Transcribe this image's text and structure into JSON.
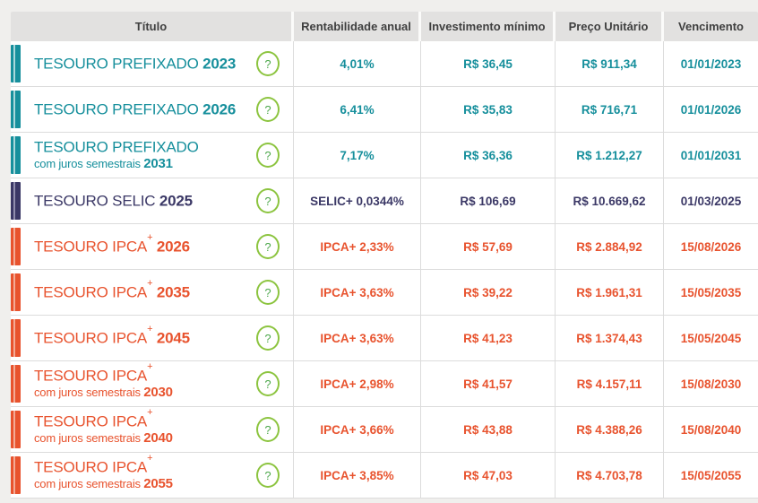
{
  "colors": {
    "page_bg": "#f0efed",
    "header_bg": "#e2e1e0",
    "header_text": "#3f3f3f",
    "border": "#dcdcdc",
    "teal": "#168f9c",
    "navy": "#3b3866",
    "orange": "#e8532e",
    "help_border": "#8cc43f",
    "help_color": "#4ca74b"
  },
  "table": {
    "help_icon_label": "?",
    "columns": [
      {
        "label": "Título"
      },
      {
        "label": "Rentabilidade anual"
      },
      {
        "label": "Investimento mínimo"
      },
      {
        "label": "Preço Unitário"
      },
      {
        "label": "Vencimento"
      }
    ],
    "rows": [
      {
        "title": "TESOURO PREFIXADO",
        "sup": "",
        "subtitle": "",
        "year": "2023",
        "theme": "teal",
        "rate_label": "",
        "rate_value": "4,01%",
        "min_investment": "R$ 36,45",
        "unit_price": "R$ 911,34",
        "maturity": "01/01/2023"
      },
      {
        "title": "TESOURO PREFIXADO",
        "sup": "",
        "subtitle": "",
        "year": "2026",
        "theme": "teal",
        "rate_label": "",
        "rate_value": "6,41%",
        "min_investment": "R$ 35,83",
        "unit_price": "R$ 716,71",
        "maturity": "01/01/2026"
      },
      {
        "title": "TESOURO PREFIXADO",
        "sup": "",
        "subtitle": "com juros semestrais",
        "year": "2031",
        "theme": "teal",
        "rate_label": "",
        "rate_value": "7,17%",
        "min_investment": "R$ 36,36",
        "unit_price": "R$ 1.212,27",
        "maturity": "01/01/2031"
      },
      {
        "title": "TESOURO SELIC",
        "sup": "",
        "subtitle": "",
        "year": "2025",
        "theme": "navy",
        "rate_label": "SELIC",
        "rate_value": " + 0,0344%",
        "min_investment": "R$ 106,69",
        "unit_price": "R$ 10.669,62",
        "maturity": "01/03/2025"
      },
      {
        "title": "TESOURO IPCA",
        "sup": "+",
        "subtitle": "",
        "year": "2026",
        "theme": "orange",
        "rate_label": "IPCA",
        "rate_value": " + 2,33%",
        "min_investment": "R$ 57,69",
        "unit_price": "R$ 2.884,92",
        "maturity": "15/08/2026"
      },
      {
        "title": "TESOURO IPCA",
        "sup": "+",
        "subtitle": "",
        "year": "2035",
        "theme": "orange",
        "rate_label": "IPCA",
        "rate_value": " + 3,63%",
        "min_investment": "R$ 39,22",
        "unit_price": "R$ 1.961,31",
        "maturity": "15/05/2035"
      },
      {
        "title": "TESOURO IPCA",
        "sup": "+",
        "subtitle": "",
        "year": "2045",
        "theme": "orange",
        "rate_label": "IPCA",
        "rate_value": " + 3,63%",
        "min_investment": "R$ 41,23",
        "unit_price": "R$ 1.374,43",
        "maturity": "15/05/2045"
      },
      {
        "title": "TESOURO IPCA",
        "sup": "+",
        "subtitle": "com juros semestrais",
        "year": "2030",
        "theme": "orange",
        "rate_label": "IPCA",
        "rate_value": " + 2,98%",
        "min_investment": "R$ 41,57",
        "unit_price": "R$ 4.157,11",
        "maturity": "15/08/2030"
      },
      {
        "title": "TESOURO IPCA",
        "sup": "+",
        "subtitle": "com juros semestrais",
        "year": "2040",
        "theme": "orange",
        "rate_label": "IPCA",
        "rate_value": " + 3,66%",
        "min_investment": "R$ 43,88",
        "unit_price": "R$ 4.388,26",
        "maturity": "15/08/2040"
      },
      {
        "title": "TESOURO IPCA",
        "sup": "+",
        "subtitle": "com juros semestrais",
        "year": "2055",
        "theme": "orange",
        "rate_label": "IPCA",
        "rate_value": " + 3,85%",
        "min_investment": "R$ 47,03",
        "unit_price": "R$ 4.703,78",
        "maturity": "15/05/2055"
      }
    ]
  }
}
